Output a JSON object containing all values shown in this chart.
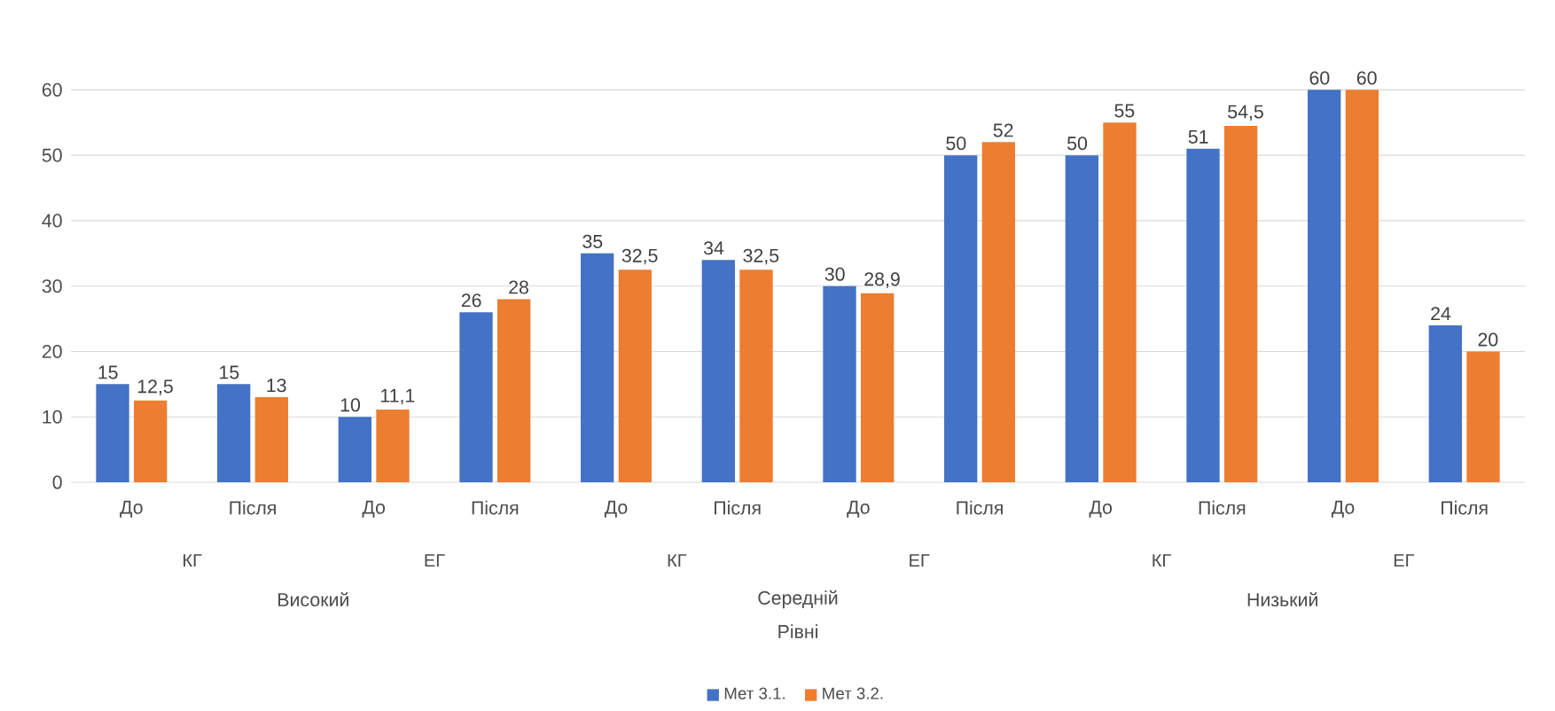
{
  "chart_data": {
    "type": "bar",
    "categories": [
      "До",
      "Після",
      "До",
      "Після",
      "До",
      "Після",
      "До",
      "Після",
      "До",
      "Після",
      "До",
      "Після"
    ],
    "series": [
      {
        "name": "Мет 3.1.",
        "color": "#4472c4",
        "values": [
          15,
          15,
          10,
          26,
          35,
          34,
          30,
          50,
          50,
          51,
          60,
          24
        ],
        "value_labels": [
          "15",
          "15",
          "10",
          "26",
          "35",
          "34",
          "30",
          "50",
          "50",
          "51",
          "60",
          "24"
        ]
      },
      {
        "name": "Мет 3.2.",
        "color": "#ed7d31",
        "values": [
          12.5,
          13,
          11.1,
          28,
          32.5,
          32.5,
          28.9,
          52,
          55,
          54.5,
          60,
          20
        ],
        "value_labels": [
          "12,5",
          "13",
          "11,1",
          "28",
          "32,5",
          "32,5",
          "28,9",
          "52",
          "55",
          "54,5",
          "60",
          "20"
        ]
      }
    ],
    "annotations": [
      "КГ",
      "ЕГ",
      "КГ",
      "ЕГ",
      "КГ",
      "ЕГ",
      "Високий",
      "Середній",
      "Низький",
      "Рівні"
    ],
    "ylim": [
      0,
      60
    ],
    "yticks": [
      0,
      10,
      20,
      30,
      40,
      50,
      60
    ],
    "grid": "y",
    "legend": "bottom"
  }
}
